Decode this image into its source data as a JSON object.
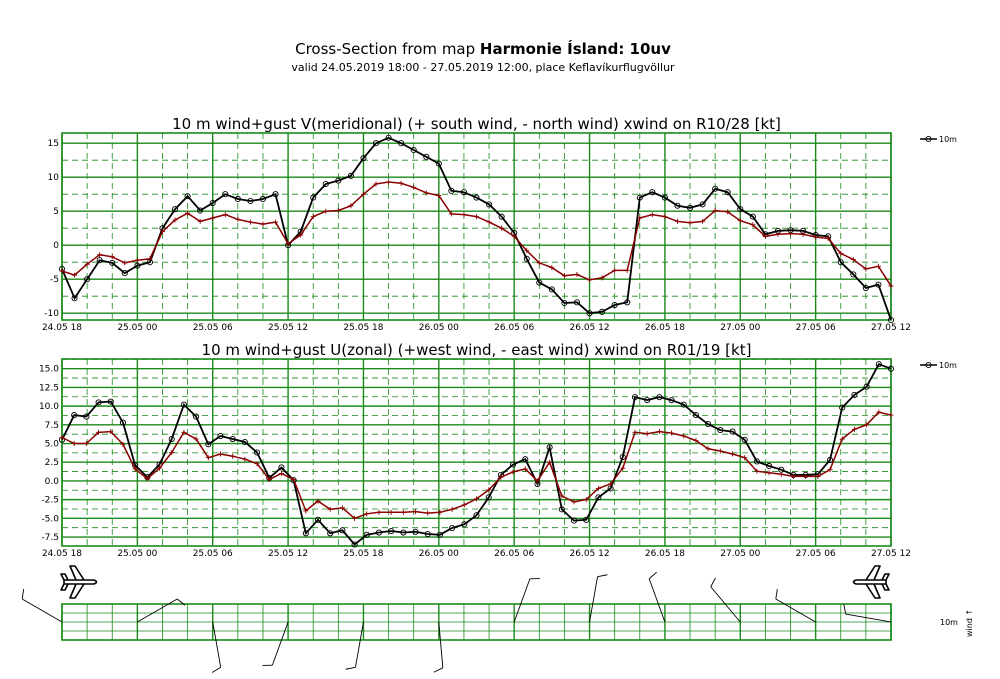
{
  "header": {
    "title_prefix": "Cross-Section from map ",
    "title_bold": "Harmonie Ísland: 10uv",
    "subtitle": "valid 24.05.2019 18:00 - 27.05.2019 12:00, place Keflavíkurflugvöllur"
  },
  "colors": {
    "grid": "#1a8a1a",
    "gust": "#000000",
    "wind": "#8b0000"
  },
  "chart_data": [
    {
      "type": "line",
      "title": "10 m wind+gust V(meridional) (+ south wind, - north wind) xwind on R10/28 [kt]",
      "x_tick_labels": [
        "24.05 18",
        "25.05 00",
        "25.05 06",
        "25.05 12",
        "25.05 18",
        "26.05 00",
        "26.05 06",
        "26.05 12",
        "26.05 18",
        "27.05 00",
        "27.05 06",
        "27.05 12"
      ],
      "y_ticks": [
        -10,
        -5,
        0,
        5,
        10,
        15
      ],
      "y_tick_labels": [
        "-10",
        "-5",
        "0",
        "5",
        "10",
        "15"
      ],
      "ylim": [
        -11,
        16.5
      ],
      "x_range_hours": [
        0,
        66
      ],
      "legend_label": "10m",
      "series": [
        {
          "style": "gust",
          "values": [
            -3.5,
            -7.8,
            -5,
            -2.2,
            -2.6,
            -4.1,
            -3,
            -2.5,
            2.5,
            5.3,
            7.2,
            5.1,
            6.2,
            7.5,
            6.8,
            6.5,
            6.8,
            7.5,
            0,
            2,
            7,
            9,
            9.5,
            10.2,
            12.8,
            15,
            15.8,
            15,
            14,
            13,
            12,
            8,
            7.8,
            7,
            6,
            4.2,
            1.8,
            -2,
            -5.5,
            -6.5,
            -8.5,
            -8.4,
            -10,
            -9.8,
            -8.8,
            -8.4,
            7,
            7.8,
            7,
            5.8,
            5.5,
            6,
            8.3,
            7.8,
            5.3,
            4.2,
            1.6,
            2.1,
            2.2,
            2.1,
            1.5,
            1.3,
            -2.5,
            -4.3,
            -6.3,
            -5.8,
            -11
          ]
        },
        {
          "style": "wind",
          "values": [
            -3.8,
            -4.4,
            -2.8,
            -1.4,
            -1.7,
            -2.6,
            -2.2,
            -2,
            2,
            3.7,
            4.7,
            3.5,
            4,
            4.5,
            3.8,
            3.4,
            3.1,
            3.4,
            0.2,
            1.5,
            4.2,
            5,
            5.1,
            5.8,
            7.5,
            9,
            9.3,
            9.1,
            8.5,
            7.7,
            7.3,
            4.6,
            4.5,
            4.2,
            3.4,
            2.5,
            1.3,
            -0.8,
            -2.6,
            -3.3,
            -4.5,
            -4.3,
            -5.1,
            -4.8,
            -3.7,
            -3.7,
            4,
            4.5,
            4.2,
            3.5,
            3.3,
            3.5,
            5.1,
            4.9,
            3.6,
            3,
            1.3,
            1.6,
            1.7,
            1.6,
            1.2,
            1,
            -1.2,
            -2.1,
            -3.5,
            -3.1,
            -6
          ]
        }
      ]
    },
    {
      "type": "line",
      "title": "10 m wind+gust U(zonal) (+west wind, - east wind) xwind on R01/19 [kt]",
      "x_tick_labels": [
        "24.05 18",
        "25.05 00",
        "25.05 06",
        "25.05 12",
        "25.05 18",
        "26.05 00",
        "26.05 06",
        "26.05 12",
        "26.05 18",
        "27.05 00",
        "27.05 06",
        "27.05 12"
      ],
      "y_ticks": [
        -7.5,
        -5,
        -2.5,
        0,
        2.5,
        5,
        7.5,
        10,
        12.5,
        15
      ],
      "y_tick_labels": [
        "-7.5",
        "-5.0",
        "-2.5",
        "0.0",
        "2.5",
        "5.0",
        "7.5",
        "10.0",
        "12.5",
        "15.0"
      ],
      "ylim": [
        -8.7,
        16.3
      ],
      "x_range_hours": [
        0,
        66
      ],
      "legend_label": "10m",
      "series": [
        {
          "style": "gust",
          "values": [
            5.5,
            8.8,
            8.6,
            10.5,
            10.6,
            7.8,
            2.1,
            0.5,
            2.2,
            5.6,
            10.2,
            8.6,
            4.9,
            6,
            5.6,
            5.2,
            3.8,
            0.4,
            1.8,
            0.1,
            -7,
            -5.2,
            -7,
            -6.6,
            -8.5,
            -7.2,
            -6.9,
            -6.7,
            -6.9,
            -6.8,
            -7.1,
            -7.2,
            -6.3,
            -5.8,
            -4.6,
            -2.2,
            0.8,
            2.2,
            2.9,
            -0.4,
            4.5,
            -3.8,
            -5.3,
            -5.2,
            -2.2,
            -1,
            3.2,
            11.2,
            10.8,
            11.2,
            10.8,
            10.2,
            8.8,
            7.6,
            6.8,
            6.6,
            5.5,
            2.6,
            2,
            1.5,
            0.8,
            0.8,
            0.9,
            2.8,
            9.8,
            11.5,
            12.6,
            15.6,
            15
          ]
        },
        {
          "style": "wind",
          "values": [
            5.8,
            5,
            5,
            6.5,
            6.6,
            4.9,
            1.6,
            0.3,
            1.7,
            3.8,
            6.5,
            5.6,
            3.1,
            3.6,
            3.3,
            2.9,
            2.3,
            0.2,
            1,
            0.2,
            -4,
            -2.7,
            -3.8,
            -3.6,
            -5,
            -4.4,
            -4.2,
            -4.2,
            -4.2,
            -4.1,
            -4.3,
            -4.2,
            -3.8,
            -3.2,
            -2.4,
            -1.2,
            0.5,
            1.2,
            1.6,
            0,
            2.5,
            -2,
            -2.8,
            -2.5,
            -1,
            -0.4,
            1.7,
            6.5,
            6.3,
            6.6,
            6.4,
            6,
            5.4,
            4.3,
            4,
            3.6,
            3.1,
            1.3,
            1.1,
            0.9,
            0.6,
            0.6,
            0.6,
            1.5,
            5.6,
            6.9,
            7.5,
            9.2,
            8.8
          ]
        }
      ]
    }
  ],
  "barbs": {
    "label_level": "10m",
    "label_side": "wind ↑"
  }
}
